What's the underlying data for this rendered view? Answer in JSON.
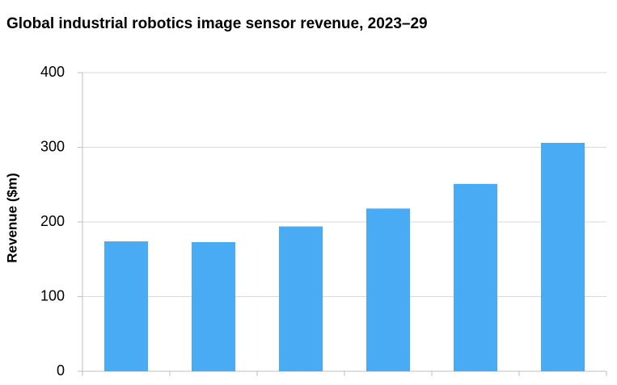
{
  "chart_data": {
    "type": "bar",
    "title": "Global industrial robotics image sensor revenue, 2023–29",
    "y_label": "Revenue ($m)",
    "categories": [
      null,
      null,
      null,
      null,
      null,
      null
    ],
    "values": [
      174,
      173,
      194,
      218,
      251,
      306
    ],
    "color": "#4aabf5",
    "ylim": [
      0,
      400
    ],
    "yticks": [
      0,
      100,
      200,
      300,
      400
    ],
    "grid": true
  }
}
